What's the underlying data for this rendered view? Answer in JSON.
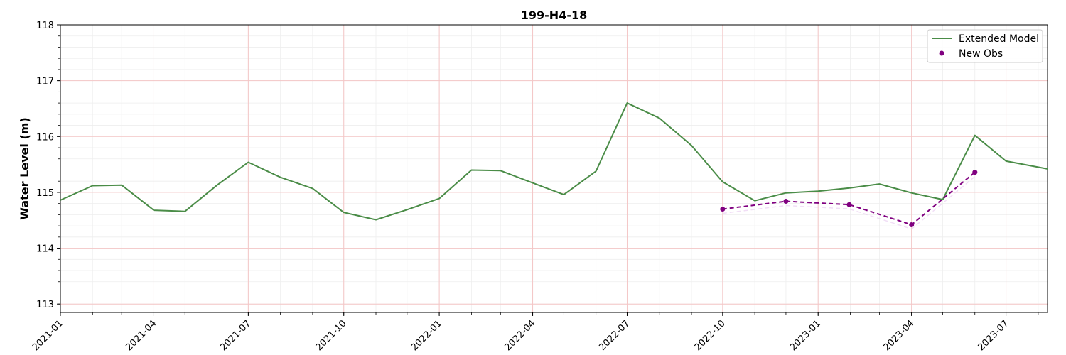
{
  "chart_data": {
    "type": "line",
    "title": "199-H4-18",
    "xlabel": "",
    "ylabel": "Water Level (m)",
    "ylim": [
      112.85,
      118
    ],
    "xlim": [
      "2021-01-01",
      "2023-08-10"
    ],
    "yticks": [
      113,
      114,
      115,
      116,
      117,
      118
    ],
    "xticks": [
      "2021-01",
      "2021-04",
      "2021-07",
      "2021-10",
      "2022-01",
      "2022-04",
      "2022-07",
      "2022-10",
      "2023-01",
      "2023-04",
      "2023-07"
    ],
    "grid": true,
    "legend_position": "top-right",
    "colors": {
      "model": "#4a8c47",
      "obs": "#800080",
      "grid_major": "#f4c6c6",
      "grid_minor": "#eeeeee"
    },
    "series": [
      {
        "name": "Extended Model",
        "style": "line",
        "x": [
          "2021-01-01",
          "2021-02-01",
          "2021-03-01",
          "2021-04-01",
          "2021-05-01",
          "2021-06-01",
          "2021-07-01",
          "2021-08-01",
          "2021-09-01",
          "2021-10-01",
          "2021-11-01",
          "2021-12-01",
          "2022-01-01",
          "2022-02-01",
          "2022-03-01",
          "2022-04-01",
          "2022-05-01",
          "2022-06-01",
          "2022-07-01",
          "2022-08-01",
          "2022-09-01",
          "2022-10-01",
          "2022-11-01",
          "2022-12-01",
          "2023-01-01",
          "2023-02-01",
          "2023-03-01",
          "2023-04-01",
          "2023-05-01",
          "2023-06-01",
          "2023-07-01",
          "2023-08-10"
        ],
        "y": [
          114.86,
          115.12,
          115.13,
          114.68,
          114.66,
          115.13,
          115.54,
          115.27,
          115.07,
          114.64,
          114.51,
          114.69,
          114.89,
          115.4,
          115.39,
          115.17,
          114.96,
          115.38,
          116.6,
          116.33,
          115.84,
          115.19,
          114.85,
          114.99,
          115.02,
          115.08,
          115.15,
          114.99,
          114.87,
          116.02,
          115.56,
          115.42
        ]
      },
      {
        "name": "New Obs",
        "style": "dashed-markers",
        "x": [
          "2022-10-01",
          "2022-12-01",
          "2023-01-31",
          "2023-04-01",
          "2023-06-01"
        ],
        "y": [
          114.7,
          114.84,
          114.78,
          114.42,
          115.36
        ]
      }
    ]
  }
}
